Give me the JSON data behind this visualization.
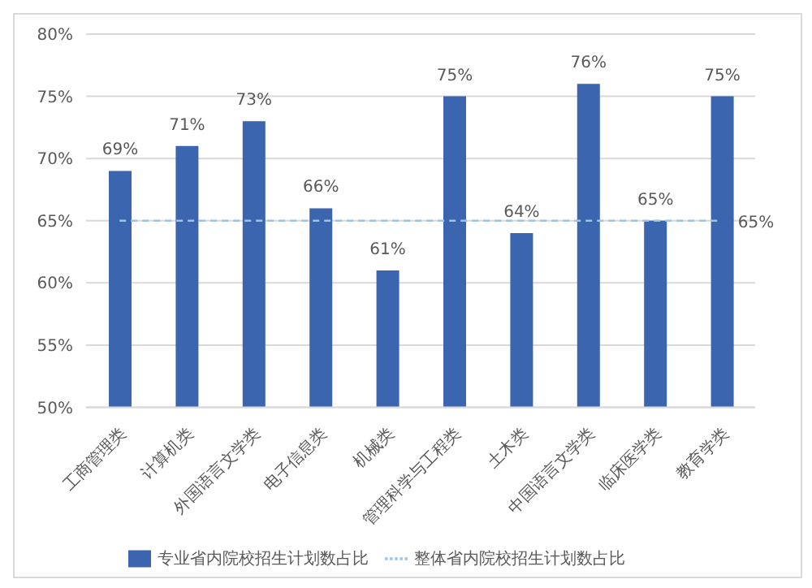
{
  "chart_data": {
    "type": "bar",
    "categories": [
      "工商管理类",
      "计算机类",
      "外国语言文学类",
      "电子信息类",
      "机械类",
      "管理科学与工程类",
      "土木类",
      "中国语言文学类",
      "临床医学类",
      "教育学类"
    ],
    "series": [
      {
        "name": "专业省内院校招生计划数占比",
        "color": "#3c65b0",
        "values": [
          69,
          71,
          73,
          66,
          61,
          75,
          64,
          76,
          65,
          75
        ],
        "value_labels": [
          "69%",
          "71%",
          "73%",
          "66%",
          "61%",
          "75%",
          "64%",
          "76%",
          "65%",
          "75%"
        ]
      },
      {
        "name": "整体省内院校招生计划数占比",
        "type": "line",
        "color": "#9dc3e6",
        "line_style": "dashed",
        "marker": "none",
        "values": [
          65,
          65,
          65,
          65,
          65,
          65,
          65,
          65,
          65,
          65
        ],
        "value_labels": [
          null,
          null,
          null,
          null,
          null,
          null,
          null,
          null,
          null,
          "65%"
        ]
      }
    ],
    "ylim": [
      50,
      80
    ],
    "yticks": [
      {
        "value": 50,
        "label": "50%"
      },
      {
        "value": 55,
        "label": "55%"
      },
      {
        "value": 60,
        "label": "60%"
      },
      {
        "value": 65,
        "label": "65%"
      },
      {
        "value": 70,
        "label": "70%"
      },
      {
        "value": 75,
        "label": "75%"
      },
      {
        "value": 80,
        "label": "80%"
      }
    ],
    "grid": "y",
    "legend": "bottom"
  }
}
